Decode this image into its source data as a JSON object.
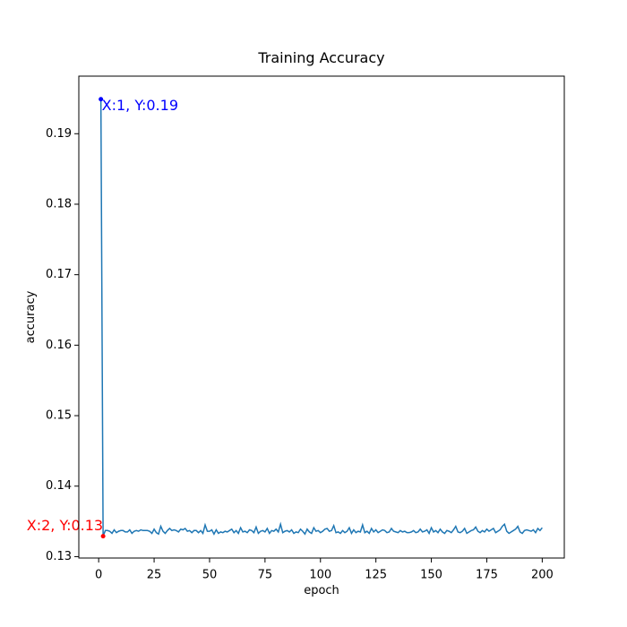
{
  "chart_data": {
    "type": "line",
    "title": "Training Accuracy",
    "x_label": "epoch",
    "y_label": "accuracy",
    "x": [
      1,
      2,
      3,
      4,
      5,
      6,
      7,
      8,
      9,
      10,
      11,
      12,
      13,
      14,
      15,
      16,
      17,
      18,
      19,
      20,
      21,
      22,
      23,
      24,
      25,
      26,
      27,
      28,
      29,
      30,
      31,
      32,
      33,
      34,
      35,
      36,
      37,
      38,
      39,
      40,
      41,
      42,
      43,
      44,
      45,
      46,
      47,
      48,
      49,
      50,
      51,
      52,
      53,
      54,
      55,
      56,
      57,
      58,
      59,
      60,
      61,
      62,
      63,
      64,
      65,
      66,
      67,
      68,
      69,
      70,
      71,
      72,
      73,
      74,
      75,
      76,
      77,
      78,
      79,
      80,
      81,
      82,
      83,
      84,
      85,
      86,
      87,
      88,
      89,
      90,
      91,
      92,
      93,
      94,
      95,
      96,
      97,
      98,
      99,
      100,
      101,
      102,
      103,
      104,
      105,
      106,
      107,
      108,
      109,
      110,
      111,
      112,
      113,
      114,
      115,
      116,
      117,
      118,
      119,
      120,
      121,
      122,
      123,
      124,
      125,
      126,
      127,
      128,
      129,
      130,
      131,
      132,
      133,
      134,
      135,
      136,
      137,
      138,
      139,
      140,
      141,
      142,
      143,
      144,
      145,
      146,
      147,
      148,
      149,
      150,
      151,
      152,
      153,
      154,
      155,
      156,
      157,
      158,
      159,
      160,
      161,
      162,
      163,
      164,
      165,
      166,
      167,
      168,
      169,
      170,
      171,
      172,
      173,
      174,
      175,
      176,
      177,
      178,
      179,
      180,
      181,
      182,
      183,
      184,
      185,
      186,
      187,
      188,
      189,
      190,
      191,
      192,
      193,
      194,
      195,
      196,
      197,
      198,
      199,
      200
    ],
    "series": [
      {
        "name": "accuracy",
        "color": "#1f77b4",
        "values": [
          0.1949,
          0.1329,
          0.1337,
          0.1337,
          0.1336,
          0.1333,
          0.1338,
          0.1334,
          0.1336,
          0.1337,
          0.1337,
          0.1335,
          0.1335,
          0.1338,
          0.1333,
          0.1336,
          0.1337,
          0.1336,
          0.1338,
          0.1337,
          0.1337,
          0.1337,
          0.1336,
          0.1333,
          0.1339,
          0.1334,
          0.1332,
          0.1343,
          0.1336,
          0.1333,
          0.1337,
          0.134,
          0.1337,
          0.1338,
          0.1337,
          0.1335,
          0.1339,
          0.1338,
          0.134,
          0.1336,
          0.1337,
          0.1334,
          0.1337,
          0.1337,
          0.1334,
          0.1337,
          0.1333,
          0.1345,
          0.1336,
          0.1336,
          0.1338,
          0.1332,
          0.1338,
          0.1333,
          0.1335,
          0.1334,
          0.1336,
          0.1335,
          0.1337,
          0.1339,
          0.1334,
          0.1337,
          0.1333,
          0.1341,
          0.1335,
          0.1336,
          0.1334,
          0.1338,
          0.1337,
          0.1334,
          0.1342,
          0.1333,
          0.1336,
          0.1337,
          0.1335,
          0.134,
          0.1333,
          0.1337,
          0.1336,
          0.1339,
          0.1335,
          0.1346,
          0.1334,
          0.1336,
          0.1337,
          0.1335,
          0.1338,
          0.1333,
          0.1335,
          0.1334,
          0.1339,
          0.1336,
          0.1332,
          0.1339,
          0.1335,
          0.1333,
          0.1341,
          0.1336,
          0.1337,
          0.1334,
          0.1336,
          0.1339,
          0.134,
          0.1336,
          0.1337,
          0.1344,
          0.1334,
          0.1335,
          0.1333,
          0.1337,
          0.1334,
          0.1336,
          0.1341,
          0.1333,
          0.1338,
          0.1334,
          0.1336,
          0.1335,
          0.1345,
          0.1334,
          0.1336,
          0.1333,
          0.134,
          0.1335,
          0.1338,
          0.1334,
          0.1336,
          0.1338,
          0.1337,
          0.1334,
          0.1335,
          0.134,
          0.1336,
          0.1335,
          0.1334,
          0.1337,
          0.1335,
          0.1336,
          0.1334,
          0.1334,
          0.1335,
          0.1337,
          0.1334,
          0.1335,
          0.1339,
          0.1335,
          0.1336,
          0.1338,
          0.1333,
          0.1341,
          0.1335,
          0.1337,
          0.1334,
          0.1339,
          0.1335,
          0.1333,
          0.1337,
          0.1336,
          0.1334,
          0.1338,
          0.1343,
          0.1335,
          0.1334,
          0.1336,
          0.134,
          0.1333,
          0.1335,
          0.1337,
          0.1338,
          0.1342,
          0.1336,
          0.1334,
          0.1337,
          0.1335,
          0.1339,
          0.1336,
          0.1338,
          0.134,
          0.1334,
          0.1336,
          0.1338,
          0.1343,
          0.1346,
          0.1336,
          0.1333,
          0.1335,
          0.1337,
          0.1339,
          0.1343,
          0.1335,
          0.1333,
          0.1337,
          0.1338,
          0.1337,
          0.1336,
          0.1338,
          0.1334,
          0.134,
          0.1337,
          0.1341
        ]
      }
    ],
    "annotations": [
      {
        "text": "X:1, Y:0.19",
        "color": "#0000ff"
      },
      {
        "text": "X:2, Y:0.13",
        "color": "#ff0000"
      }
    ],
    "xlim": [
      -8.95,
      209.95
    ],
    "ylim": [
      0.1298,
      0.19817
    ],
    "xticks": [
      0,
      25,
      50,
      75,
      100,
      125,
      150,
      175,
      200
    ],
    "yticks": [
      0.13,
      0.14,
      0.15,
      0.16,
      0.17,
      0.18,
      0.19
    ]
  }
}
